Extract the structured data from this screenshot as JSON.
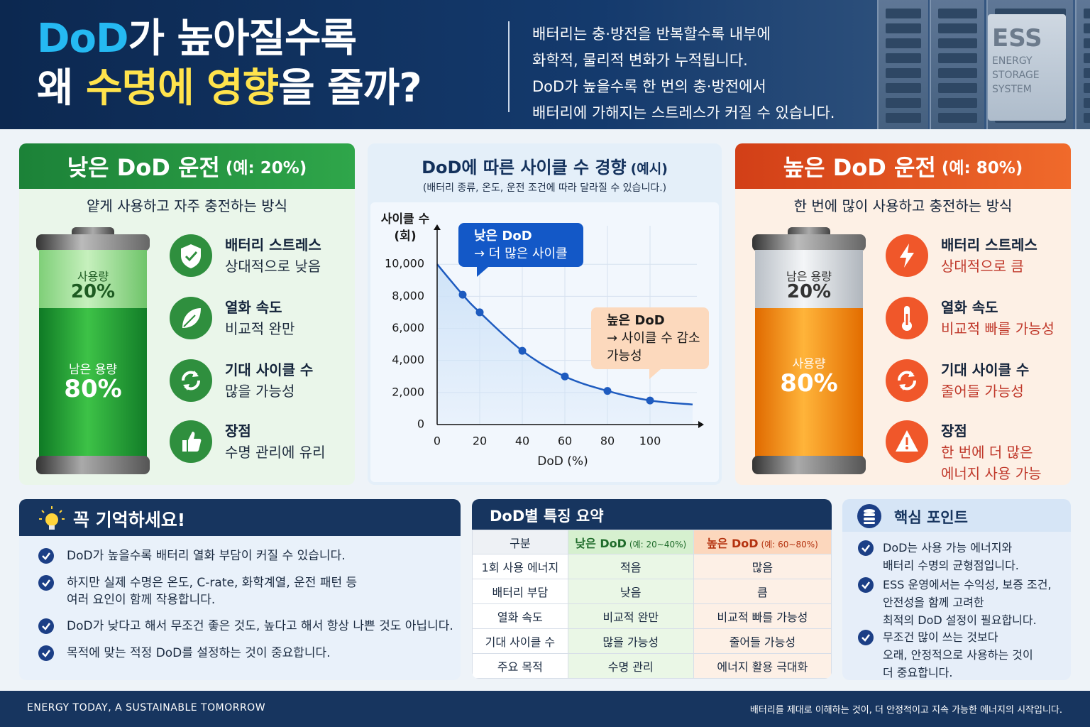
{
  "header": {
    "title_lines": [
      [
        "DoD",
        "가 높아질수록"
      ],
      [
        "왜 ",
        "수명에 영향",
        "을 줄까?"
      ]
    ],
    "description": [
      "배터리는 충·방전을 반복할수록 내부에",
      "화학적, 물리적 변화가 누적됩니다.",
      "DoD가 높을수록 한 번의 충·방전에서",
      "배터리에 가해지는 스트레스가 커질 수 있습니다."
    ],
    "badge": [
      "ESS",
      "ENERGY",
      "STORAGE",
      "SYSTEM"
    ]
  },
  "low_panel": {
    "title": "낮은 DoD 운전",
    "title_note": "(예: 20%)",
    "subtitle": "얕게 사용하고 자주 충전하는 방식",
    "battery": {
      "top_label": "사용량",
      "top_value": "20%",
      "bottom_label": "남은 용량",
      "bottom_value": "80%"
    },
    "items": [
      {
        "title": "배터리 스트레스",
        "desc": [
          "상대적으로 낮음"
        ]
      },
      {
        "title": "열화 속도",
        "desc": [
          "비교적 완만"
        ]
      },
      {
        "title": "기대 사이클 수",
        "desc": [
          "많을 가능성"
        ]
      },
      {
        "title": "장점",
        "desc": [
          "수명 관리에 유리"
        ]
      }
    ]
  },
  "chart_data": {
    "type": "line",
    "title": "DoD에 따른 사이클 수 경향",
    "title_note": "(예시)",
    "subtitle": "(배터리 종류, 온도, 운전 조건에 따라 달라질 수 있습니다.)",
    "y_label": [
      "사이클 수",
      "(회)"
    ],
    "x_label": "DoD (%)",
    "x": [
      0,
      12,
      20,
      40,
      60,
      80,
      100,
      120
    ],
    "series": [
      {
        "values": [
          10000,
          8100,
          7000,
          4600,
          3000,
          2100,
          1500,
          1250
        ],
        "color": "#1e5bbf",
        "markers": [
          false,
          true,
          true,
          true,
          true,
          true,
          true,
          false
        ]
      }
    ],
    "area_color": "#cfe3f8",
    "xlim": [
      0,
      122
    ],
    "xticks": [
      0,
      20,
      40,
      60,
      80,
      100
    ],
    "ylim": [
      0,
      12400
    ],
    "yticks": [
      0,
      {
        "value": 2000,
        "label": "2,000"
      },
      {
        "value": 4000,
        "label": "4,000"
      },
      {
        "value": 6000,
        "label": "6,000"
      },
      {
        "value": 8000,
        "label": "8,000"
      },
      {
        "value": 10000,
        "label": "10,000"
      }
    ],
    "grid": true,
    "annotations": [
      {
        "lines": [
          "낮은 DoD",
          "→ 더 많은 사이클"
        ],
        "color": "#1358c7"
      },
      {
        "lines": [
          "높은 DoD",
          "→ 사이클 수 감소",
          "가능성"
        ],
        "color": "#fcd9bd"
      }
    ]
  },
  "high_panel": {
    "title": "높은 DoD 운전",
    "title_note": "(예: 80%)",
    "subtitle": "한 번에 많이 사용하고 충전하는 방식",
    "battery": {
      "top_label": "남은 용량",
      "top_value": "20%",
      "bottom_label": "사용량",
      "bottom_value": "80%"
    },
    "items": [
      {
        "title": "배터리 스트레스",
        "desc": [
          "상대적으로 큼"
        ]
      },
      {
        "title": "열화 속도",
        "desc": [
          "비교적 빠를 가능성"
        ]
      },
      {
        "title": "기대 사이클 수",
        "desc": [
          "줄어들 가능성"
        ]
      },
      {
        "title": "장점",
        "desc": [
          "한 번에 더 많은",
          "에너지 사용 가능"
        ]
      }
    ]
  },
  "remember": {
    "title": "꼭 기억하세요!",
    "items": [
      [
        "DoD가 높을수록 배터리 열화 부담이 커질 수 있습니다."
      ],
      [
        "하지만 실제 수명은 온도, C-rate, 화학계열, 운전 패턴 등",
        "여러 요인이 함께 작용합니다."
      ],
      [
        "DoD가 낮다고 해서 무조건 좋은 것도, 높다고 해서 항상 나쁜 것도 아닙니다."
      ],
      [
        "목적에 맞는 적정 DoD를 설정하는 것이 중요합니다."
      ]
    ]
  },
  "table": {
    "title": "DoD별 특징 요약",
    "header": [
      "구분",
      {
        "main": "낮은 DoD",
        "note": "(예: 20~40%)"
      },
      {
        "main": "높은 DoD",
        "note": "(예: 60~80%)"
      }
    ],
    "rows": [
      [
        "1회 사용 에너지",
        "적음",
        "많음"
      ],
      [
        "배터리 부담",
        "낮음",
        "큼"
      ],
      [
        "열화 속도",
        "비교적 완만",
        "비교적 빠를 가능성"
      ],
      [
        "기대 사이클 수",
        "많을 가능성",
        "줄어들 가능성"
      ],
      [
        "주요 목적",
        "수명 관리",
        "에너지 활용 극대화"
      ]
    ]
  },
  "key_points": {
    "title": "핵심 포인트",
    "items": [
      [
        "DoD는 사용 가능 에너지와",
        "배터리 수명의 균형점입니다."
      ],
      [
        "ESS 운영에서는 수익성, 보증 조건,",
        "안전성을 함께 고려한",
        "최적의 DoD 설정이 필요합니다."
      ],
      [
        "무조건 많이 쓰는 것보다",
        "오래, 안정적으로 사용하는 것이",
        "더 중요합니다."
      ]
    ]
  },
  "footer": {
    "left": "ENERGY TODAY, A SUSTAINABLE TOMORROW",
    "right": "배터리를 제대로 이해하는 것이, 더 안정적이고 지속 가능한 에너지의 시작입니다."
  }
}
